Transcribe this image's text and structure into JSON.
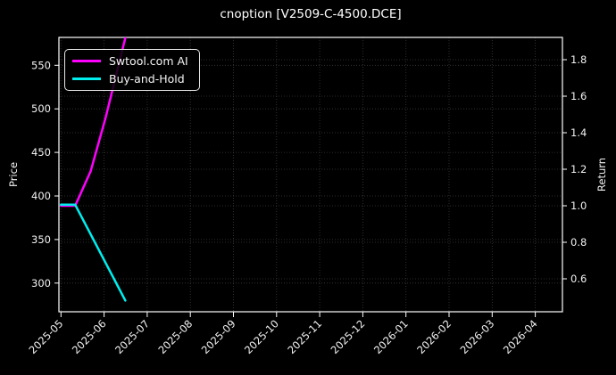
{
  "window": {
    "title": "cnoption [V2509-C-4500.DCE]"
  },
  "colors": {
    "background": "#000000",
    "text": "#ffffff",
    "spine": "#ffffff",
    "grid": "#3a3a3a",
    "ai_line": "#ff00ff",
    "hold_line": "#00eeee"
  },
  "chart_data": {
    "type": "line",
    "title": "cnoption [V2509-C-4500.DCE]",
    "grid": {
      "on": true,
      "style": "dotted"
    },
    "left_axis": {
      "label": "Price",
      "ticks": [
        550,
        500,
        450,
        400,
        350,
        300
      ],
      "top_value": 582,
      "bottom_value": 267
    },
    "right_axis": {
      "label": "Return",
      "ticks": [
        1.8,
        1.6,
        1.4,
        1.2,
        1.0,
        0.8,
        0.6
      ],
      "top_value": 1.92,
      "bottom_value": 0.42
    },
    "x_axis": {
      "tick_labels": [
        "2025-05",
        "2025-06",
        "2025-07",
        "2025-08",
        "2025-09",
        "2025-10",
        "2025-11",
        "2025-12",
        "2026-01",
        "2026-02",
        "2026-03",
        "2026-04"
      ],
      "label_rotation_deg": 45
    },
    "legend": {
      "position": "upper-left",
      "items": [
        {
          "label": "Swtool.com AI",
          "color": "#ff00ff"
        },
        {
          "label": "Buy-and-Hold",
          "color": "#00eeee"
        }
      ]
    },
    "series": [
      {
        "name": "Swtool.com AI",
        "axis": "return",
        "color": "#ff00ff",
        "x": [
          "2025-05-01",
          "2025-05-11",
          "2025-05-22",
          "2025-06-02",
          "2025-06-16"
        ],
        "values": [
          1.0,
          1.0,
          1.19,
          1.48,
          1.92
        ]
      },
      {
        "name": "Buy-and-Hold",
        "axis": "price",
        "color": "#00eeee",
        "x": [
          "2025-05-01",
          "2025-05-11",
          "2025-06-16"
        ],
        "values": [
          390,
          390,
          280
        ]
      }
    ]
  }
}
